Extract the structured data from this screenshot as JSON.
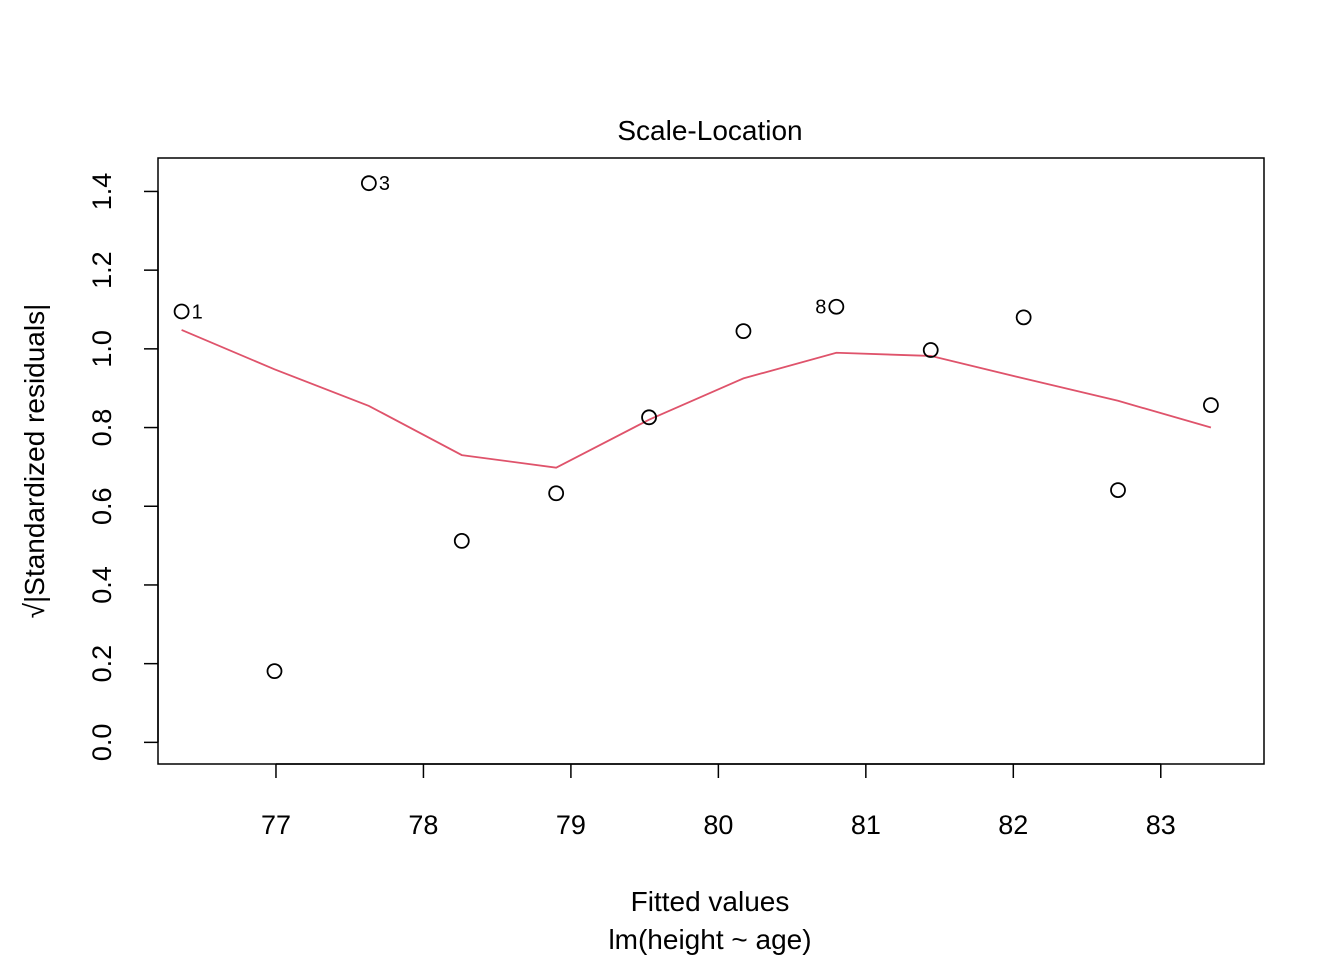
{
  "chart_data": {
    "type": "scatter",
    "title": "Scale-Location",
    "xlabel": "Fitted values",
    "xsublabel": "lm(height ~ age)",
    "ylabel": "√|Standardized residuals|",
    "xlim": [
      76.2,
      83.7
    ],
    "ylim": [
      -0.055,
      1.485
    ],
    "x_ticks": [
      77,
      78,
      79,
      80,
      81,
      82,
      83
    ],
    "y_ticks": [
      0.0,
      0.2,
      0.4,
      0.6,
      0.8,
      1.0,
      1.2,
      1.4
    ],
    "x_tick_labels": [
      "77",
      "78",
      "79",
      "80",
      "81",
      "82",
      "83"
    ],
    "y_tick_labels": [
      "0.0",
      "0.2",
      "0.4",
      "0.6",
      "0.8",
      "1.0",
      "1.2",
      "1.4"
    ],
    "grid": false,
    "points": [
      {
        "x": 76.36,
        "y": 1.095,
        "label": "1",
        "label_side": "right"
      },
      {
        "x": 76.99,
        "y": 0.181,
        "label": "",
        "label_side": ""
      },
      {
        "x": 77.63,
        "y": 1.421,
        "label": "3",
        "label_side": "right"
      },
      {
        "x": 78.26,
        "y": 0.512,
        "label": "",
        "label_side": ""
      },
      {
        "x": 78.9,
        "y": 0.633,
        "label": "",
        "label_side": ""
      },
      {
        "x": 79.53,
        "y": 0.826,
        "label": "",
        "label_side": ""
      },
      {
        "x": 80.17,
        "y": 1.045,
        "label": "",
        "label_side": ""
      },
      {
        "x": 80.8,
        "y": 1.107,
        "label": "8",
        "label_side": "left"
      },
      {
        "x": 81.44,
        "y": 0.997,
        "label": "",
        "label_side": ""
      },
      {
        "x": 82.07,
        "y": 1.08,
        "label": "",
        "label_side": ""
      },
      {
        "x": 82.71,
        "y": 0.641,
        "label": "",
        "label_side": ""
      },
      {
        "x": 83.34,
        "y": 0.857,
        "label": "",
        "label_side": ""
      }
    ],
    "smooth_line": {
      "color": "#DF536B",
      "x": [
        76.36,
        76.99,
        77.63,
        78.26,
        78.9,
        79.53,
        80.17,
        80.8,
        81.44,
        82.07,
        82.71,
        83.34
      ],
      "y": [
        1.048,
        0.948,
        0.855,
        0.73,
        0.698,
        0.82,
        0.925,
        0.99,
        0.982,
        0.925,
        0.868,
        0.8
      ]
    },
    "point_color": "#000000"
  }
}
